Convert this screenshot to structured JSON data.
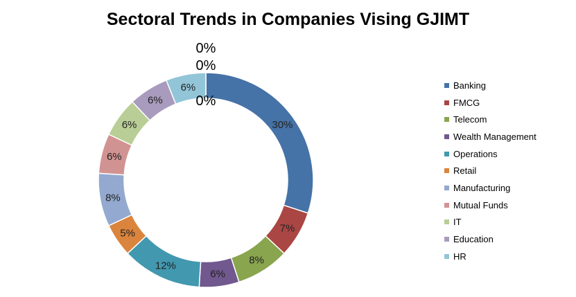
{
  "chart_data": {
    "type": "pie",
    "variant": "donut",
    "title": "Sectoral Trends in Companies Vising GJIMT",
    "slices": [
      {
        "name": "Banking",
        "value": 30,
        "label": "30%",
        "color": "#4572A7"
      },
      {
        "name": "FMCG",
        "value": 7,
        "label": "7%",
        "color": "#AA4643"
      },
      {
        "name": "Telecom",
        "value": 8,
        "label": "8%",
        "color": "#89A54E"
      },
      {
        "name": "Wealth Management",
        "value": 6,
        "label": "6%",
        "color": "#71588F"
      },
      {
        "name": "Operations",
        "value": 12,
        "label": "12%",
        "color": "#4198AF"
      },
      {
        "name": "Retail",
        "value": 5,
        "label": "5%",
        "color": "#DB843D"
      },
      {
        "name": "Manufacturing",
        "value": 8,
        "label": "8%",
        "color": "#93A9CF"
      },
      {
        "name": "Mutual Funds",
        "value": 6,
        "label": "6%",
        "color": "#D19392"
      },
      {
        "name": "IT",
        "value": 6,
        "label": "6%",
        "color": "#B9CD96"
      },
      {
        "name": "Education",
        "value": 6,
        "label": "6%",
        "color": "#A99BBD"
      },
      {
        "name": "HR",
        "value": 6,
        "label": "6%",
        "color": "#92C5D8"
      }
    ],
    "extra_labels": [
      "0%",
      "0%",
      "0%"
    ],
    "legend_position": "right"
  }
}
